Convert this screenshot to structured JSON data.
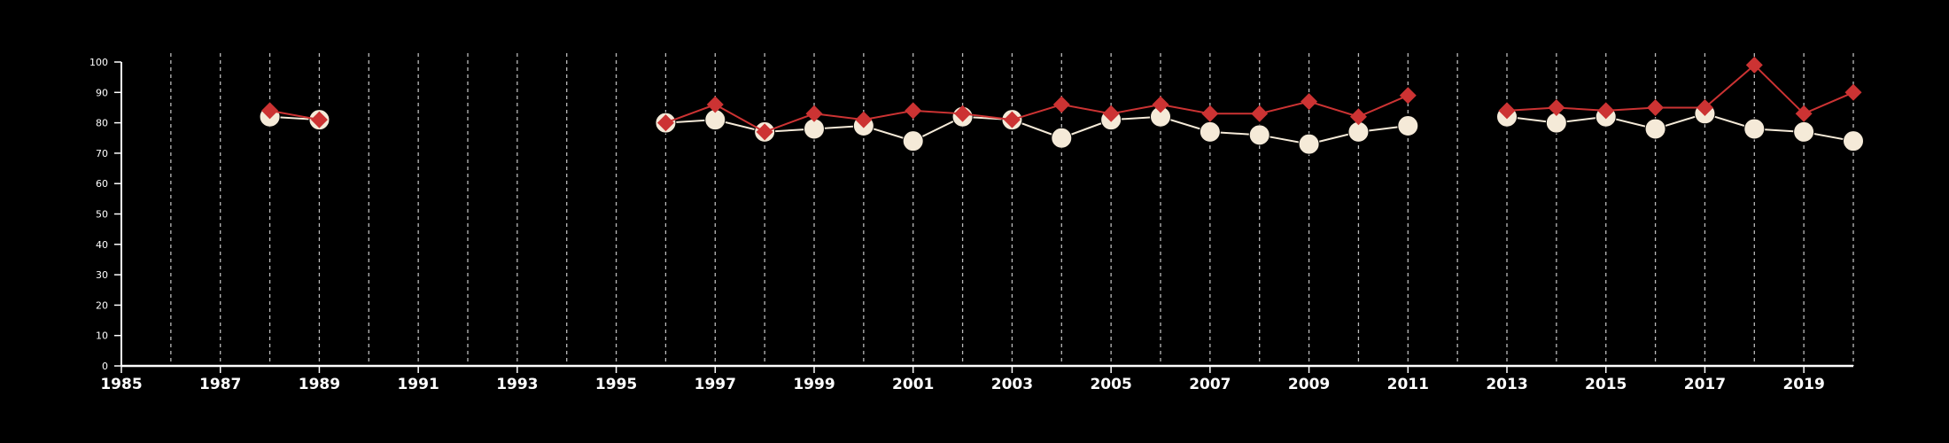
{
  "chart_data": {
    "type": "line",
    "title": "",
    "xlabel": "",
    "ylabel": "",
    "xlim": [
      1985,
      2020
    ],
    "ylim": [
      0,
      100
    ],
    "x_ticks": [
      1985,
      1987,
      1989,
      1991,
      1993,
      1995,
      1997,
      1999,
      2001,
      2003,
      2005,
      2007,
      2009,
      2011,
      2013,
      2015,
      2017,
      2019
    ],
    "y_ticks": [
      0,
      10,
      20,
      30,
      40,
      50,
      60,
      70,
      80,
      90,
      100
    ],
    "vertical_gridlines_years": [
      1986,
      1987,
      1988,
      1989,
      1990,
      1991,
      1992,
      1993,
      1994,
      1995,
      1996,
      1997,
      1998,
      1999,
      2000,
      2001,
      2002,
      2003,
      2004,
      2005,
      2006,
      2007,
      2008,
      2009,
      2010,
      2011,
      2012,
      2013,
      2014,
      2015,
      2016,
      2017,
      2018,
      2019,
      2020
    ],
    "grid": "vertical dashed",
    "legend": "none",
    "series": [
      {
        "color": "#cc3333",
        "marker": "diamond",
        "segments": [
          [
            {
              "x": 1988,
              "y": 84
            },
            {
              "x": 1989,
              "y": 81
            }
          ],
          [
            {
              "x": 1996,
              "y": 80
            },
            {
              "x": 1997,
              "y": 86
            },
            {
              "x": 1998,
              "y": 77
            },
            {
              "x": 1999,
              "y": 83
            },
            {
              "x": 2000,
              "y": 81
            },
            {
              "x": 2001,
              "y": 84
            },
            {
              "x": 2002,
              "y": 83
            },
            {
              "x": 2003,
              "y": 81
            },
            {
              "x": 2004,
              "y": 86
            },
            {
              "x": 2005,
              "y": 83
            },
            {
              "x": 2006,
              "y": 86
            },
            {
              "x": 2007,
              "y": 83
            },
            {
              "x": 2008,
              "y": 83
            },
            {
              "x": 2009,
              "y": 87
            },
            {
              "x": 2010,
              "y": 82
            },
            {
              "x": 2011,
              "y": 89
            }
          ],
          [
            {
              "x": 2013,
              "y": 84
            },
            {
              "x": 2014,
              "y": 85
            },
            {
              "x": 2015,
              "y": 84
            },
            {
              "x": 2016,
              "y": 85
            },
            {
              "x": 2017,
              "y": 85
            },
            {
              "x": 2018,
              "y": 99
            },
            {
              "x": 2019,
              "y": 83
            },
            {
              "x": 2020,
              "y": 90
            }
          ]
        ]
      },
      {
        "color": "#f5ead8",
        "marker": "circle",
        "segments": [
          [
            {
              "x": 1988,
              "y": 82
            },
            {
              "x": 1989,
              "y": 81
            }
          ],
          [
            {
              "x": 1996,
              "y": 80
            },
            {
              "x": 1997,
              "y": 81
            },
            {
              "x": 1998,
              "y": 77
            },
            {
              "x": 1999,
              "y": 78
            },
            {
              "x": 2000,
              "y": 79
            },
            {
              "x": 2001,
              "y": 74
            },
            {
              "x": 2002,
              "y": 82
            },
            {
              "x": 2003,
              "y": 81
            },
            {
              "x": 2004,
              "y": 75
            },
            {
              "x": 2005,
              "y": 81
            },
            {
              "x": 2006,
              "y": 82
            },
            {
              "x": 2007,
              "y": 77
            },
            {
              "x": 2008,
              "y": 76
            },
            {
              "x": 2009,
              "y": 73
            },
            {
              "x": 2010,
              "y": 77
            },
            {
              "x": 2011,
              "y": 79
            }
          ],
          [
            {
              "x": 2013,
              "y": 82
            },
            {
              "x": 2014,
              "y": 80
            },
            {
              "x": 2015,
              "y": 82
            },
            {
              "x": 2016,
              "y": 78
            },
            {
              "x": 2017,
              "y": 83
            },
            {
              "x": 2018,
              "y": 78
            },
            {
              "x": 2019,
              "y": 77
            },
            {
              "x": 2020,
              "y": 74
            }
          ]
        ]
      }
    ]
  }
}
